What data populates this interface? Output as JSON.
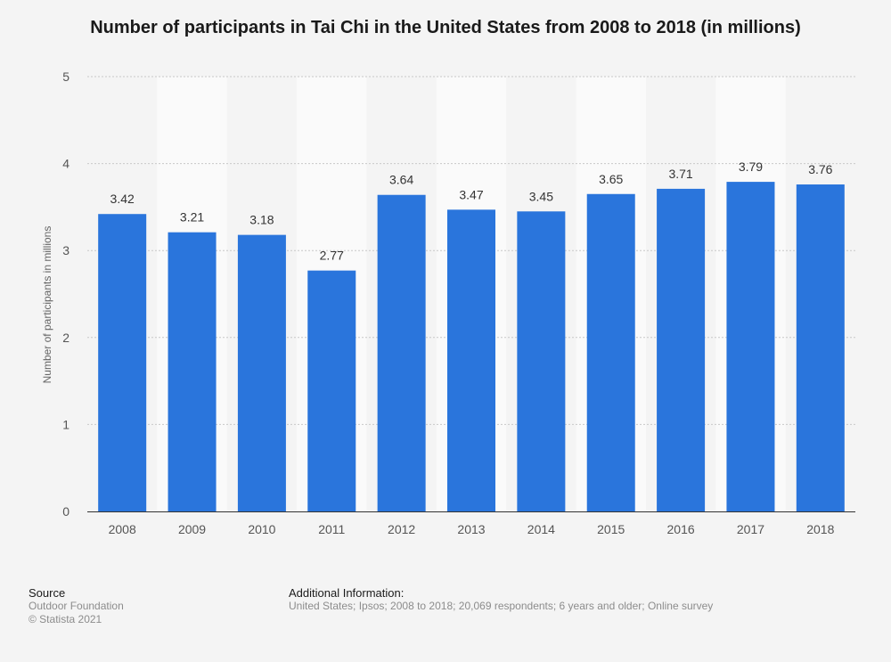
{
  "chart_data": {
    "type": "bar",
    "title": "Number of participants in Tai Chi in the United States from 2008 to 2018 (in millions)",
    "xlabel": "",
    "ylabel": "Number of participants in millions",
    "categories": [
      "2008",
      "2009",
      "2010",
      "2011",
      "2012",
      "2013",
      "2014",
      "2015",
      "2016",
      "2017",
      "2018"
    ],
    "values": [
      3.42,
      3.21,
      3.18,
      2.77,
      3.64,
      3.47,
      3.45,
      3.65,
      3.71,
      3.79,
      3.76
    ],
    "value_labels": [
      "3.42",
      "3.21",
      "3.18",
      "2.77",
      "3.64",
      "3.47",
      "3.45",
      "3.65",
      "3.71",
      "3.79",
      "3.76"
    ],
    "ylim": [
      0,
      5
    ],
    "yticks": [
      "0",
      "1",
      "2",
      "3",
      "4",
      "5"
    ],
    "grid": true,
    "bar_color": "#2a75dc",
    "band_color": "#fafafa"
  },
  "footer": {
    "source_heading": "Source",
    "source_name": "Outdoor Foundation",
    "copyright": "© Statista 2021",
    "additional_heading": "Additional Information:",
    "additional_text": "United States; Ipsos; 2008 to 2018; 20,069 respondents; 6 years and older; Online survey"
  }
}
